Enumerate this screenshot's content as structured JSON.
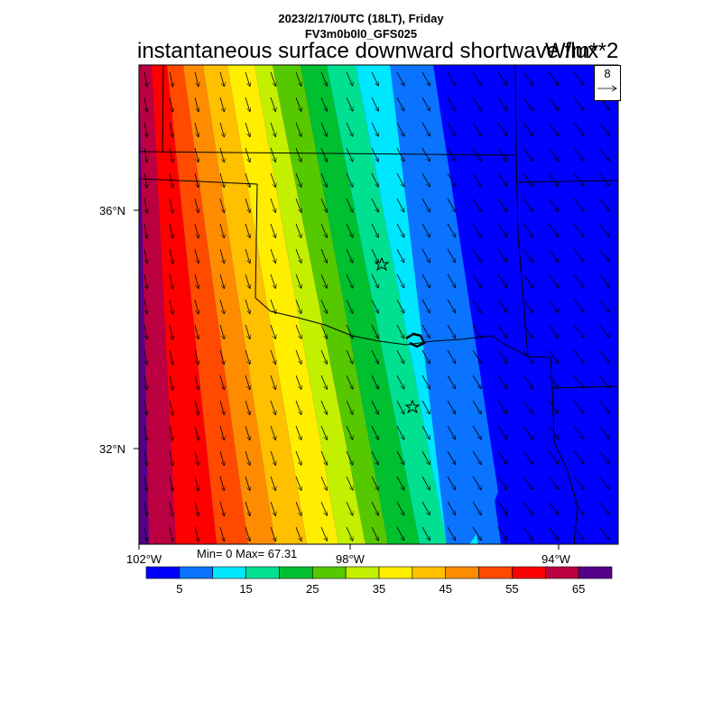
{
  "header": {
    "datetime": "2023/2/17/0UTC (18LT), Friday",
    "model": "FV3m0b0l0_GFS025",
    "title": "instantaneous surface downward shortwave flux",
    "units": "W/m**2"
  },
  "map": {
    "lat_labels": [
      "36°N",
      "32°N"
    ],
    "lon_labels": [
      "102°W",
      "98°W",
      "94°W"
    ],
    "stats": "Min= 0 Max= 67.31",
    "reference_vector": "8",
    "markers": [
      "star-marker",
      "star-marker"
    ]
  },
  "colorbar": {
    "colors": [
      "#0000ff",
      "#0a73ff",
      "#00e6ff",
      "#00e090",
      "#00c030",
      "#56c800",
      "#c3ef00",
      "#ffee00",
      "#ffc000",
      "#ff8c00",
      "#ff4a00",
      "#ff0000",
      "#bb0042",
      "#550089"
    ],
    "labels": [
      "5",
      "15",
      "25",
      "35",
      "45",
      "55",
      "65"
    ]
  }
}
